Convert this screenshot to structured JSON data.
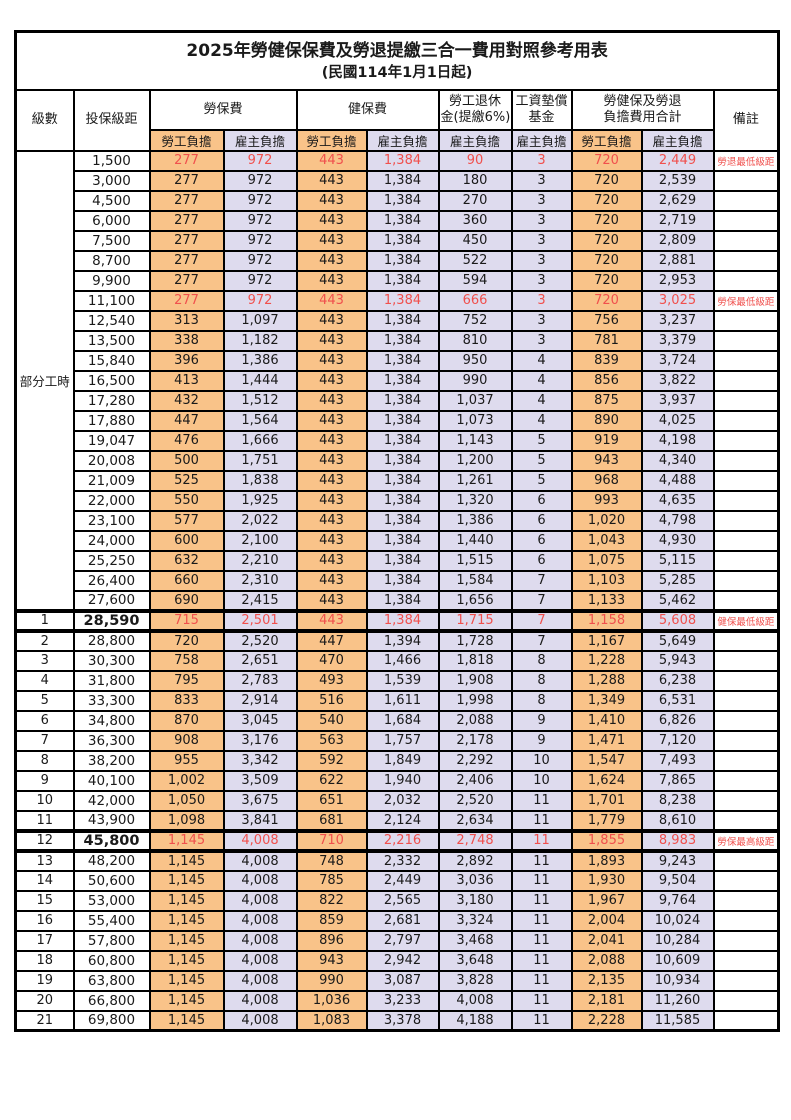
{
  "header": {
    "title": "2025年勞健保保費及勞退提繳三合一費用對照參考用表",
    "subtitle": "(民國114年1月1日起)",
    "col_level": "級數",
    "col_bracket": "投保級距",
    "group_labor": "勞保費",
    "group_health": "健保費",
    "group_pension_line1": "勞工退休",
    "group_pension_line2": "金(提繳6%)",
    "group_wage_line1": "工資墊償",
    "group_wage_line2": "基金",
    "group_total_line1": "勞健保及勞退",
    "group_total_line2": "負擔費用合計",
    "col_note": "備註",
    "sub_employee": "勞工負擔",
    "sub_employer": "雇主負擔"
  },
  "partial_time_label": "部分工時",
  "partial_time_rowspan": 23,
  "colors": {
    "employee_bg": "#f9c389",
    "employer_bg": "#dedbee",
    "highlight_text": "#f0504d",
    "grid": "#000000"
  },
  "rows": [
    {
      "level": "",
      "bracket": "1,500",
      "values": [
        "277",
        "972",
        "443",
        "1,384",
        "90",
        "3",
        "720",
        "2,449"
      ],
      "note": "勞退最低級距",
      "red": true
    },
    {
      "level": "",
      "bracket": "3,000",
      "values": [
        "277",
        "972",
        "443",
        "1,384",
        "180",
        "3",
        "720",
        "2,539"
      ],
      "note": ""
    },
    {
      "level": "",
      "bracket": "4,500",
      "values": [
        "277",
        "972",
        "443",
        "1,384",
        "270",
        "3",
        "720",
        "2,629"
      ],
      "note": ""
    },
    {
      "level": "",
      "bracket": "6,000",
      "values": [
        "277",
        "972",
        "443",
        "1,384",
        "360",
        "3",
        "720",
        "2,719"
      ],
      "note": ""
    },
    {
      "level": "",
      "bracket": "7,500",
      "values": [
        "277",
        "972",
        "443",
        "1,384",
        "450",
        "3",
        "720",
        "2,809"
      ],
      "note": ""
    },
    {
      "level": "",
      "bracket": "8,700",
      "values": [
        "277",
        "972",
        "443",
        "1,384",
        "522",
        "3",
        "720",
        "2,881"
      ],
      "note": ""
    },
    {
      "level": "",
      "bracket": "9,900",
      "values": [
        "277",
        "972",
        "443",
        "1,384",
        "594",
        "3",
        "720",
        "2,953"
      ],
      "note": ""
    },
    {
      "level": "",
      "bracket": "11,100",
      "values": [
        "277",
        "972",
        "443",
        "1,384",
        "666",
        "3",
        "720",
        "3,025"
      ],
      "note": "勞保最低級距",
      "red": true
    },
    {
      "level": "",
      "bracket": "12,540",
      "values": [
        "313",
        "1,097",
        "443",
        "1,384",
        "752",
        "3",
        "756",
        "3,237"
      ],
      "note": ""
    },
    {
      "level": "",
      "bracket": "13,500",
      "values": [
        "338",
        "1,182",
        "443",
        "1,384",
        "810",
        "3",
        "781",
        "3,379"
      ],
      "note": ""
    },
    {
      "level": "",
      "bracket": "15,840",
      "values": [
        "396",
        "1,386",
        "443",
        "1,384",
        "950",
        "4",
        "839",
        "3,724"
      ],
      "note": ""
    },
    {
      "level": "",
      "bracket": "16,500",
      "values": [
        "413",
        "1,444",
        "443",
        "1,384",
        "990",
        "4",
        "856",
        "3,822"
      ],
      "note": ""
    },
    {
      "level": "",
      "bracket": "17,280",
      "values": [
        "432",
        "1,512",
        "443",
        "1,384",
        "1,037",
        "4",
        "875",
        "3,937"
      ],
      "note": ""
    },
    {
      "level": "",
      "bracket": "17,880",
      "values": [
        "447",
        "1,564",
        "443",
        "1,384",
        "1,073",
        "4",
        "890",
        "4,025"
      ],
      "note": ""
    },
    {
      "level": "",
      "bracket": "19,047",
      "values": [
        "476",
        "1,666",
        "443",
        "1,384",
        "1,143",
        "5",
        "919",
        "4,198"
      ],
      "note": ""
    },
    {
      "level": "",
      "bracket": "20,008",
      "values": [
        "500",
        "1,751",
        "443",
        "1,384",
        "1,200",
        "5",
        "943",
        "4,340"
      ],
      "note": ""
    },
    {
      "level": "",
      "bracket": "21,009",
      "values": [
        "525",
        "1,838",
        "443",
        "1,384",
        "1,261",
        "5",
        "968",
        "4,488"
      ],
      "note": ""
    },
    {
      "level": "",
      "bracket": "22,000",
      "values": [
        "550",
        "1,925",
        "443",
        "1,384",
        "1,320",
        "6",
        "993",
        "4,635"
      ],
      "note": ""
    },
    {
      "level": "",
      "bracket": "23,100",
      "values": [
        "577",
        "2,022",
        "443",
        "1,384",
        "1,386",
        "6",
        "1,020",
        "4,798"
      ],
      "note": ""
    },
    {
      "level": "",
      "bracket": "24,000",
      "values": [
        "600",
        "2,100",
        "443",
        "1,384",
        "1,440",
        "6",
        "1,043",
        "4,930"
      ],
      "note": ""
    },
    {
      "level": "",
      "bracket": "25,250",
      "values": [
        "632",
        "2,210",
        "443",
        "1,384",
        "1,515",
        "6",
        "1,075",
        "5,115"
      ],
      "note": ""
    },
    {
      "level": "",
      "bracket": "26,400",
      "values": [
        "660",
        "2,310",
        "443",
        "1,384",
        "1,584",
        "7",
        "1,103",
        "5,285"
      ],
      "note": ""
    },
    {
      "level": "",
      "bracket": "27,600",
      "values": [
        "690",
        "2,415",
        "443",
        "1,384",
        "1,656",
        "7",
        "1,133",
        "5,462"
      ],
      "note": ""
    },
    {
      "level": "1",
      "bracket": "28,590",
      "values": [
        "715",
        "2,501",
        "443",
        "1,384",
        "1,715",
        "7",
        "1,158",
        "5,608"
      ],
      "note": "健保最低級距",
      "red": true,
      "emphasis": true
    },
    {
      "level": "2",
      "bracket": "28,800",
      "values": [
        "720",
        "2,520",
        "447",
        "1,394",
        "1,728",
        "7",
        "1,167",
        "5,649"
      ],
      "note": ""
    },
    {
      "level": "3",
      "bracket": "30,300",
      "values": [
        "758",
        "2,651",
        "470",
        "1,466",
        "1,818",
        "8",
        "1,228",
        "5,943"
      ],
      "note": ""
    },
    {
      "level": "4",
      "bracket": "31,800",
      "values": [
        "795",
        "2,783",
        "493",
        "1,539",
        "1,908",
        "8",
        "1,288",
        "6,238"
      ],
      "note": ""
    },
    {
      "level": "5",
      "bracket": "33,300",
      "values": [
        "833",
        "2,914",
        "516",
        "1,611",
        "1,998",
        "8",
        "1,349",
        "6,531"
      ],
      "note": ""
    },
    {
      "level": "6",
      "bracket": "34,800",
      "values": [
        "870",
        "3,045",
        "540",
        "1,684",
        "2,088",
        "9",
        "1,410",
        "6,826"
      ],
      "note": ""
    },
    {
      "level": "7",
      "bracket": "36,300",
      "values": [
        "908",
        "3,176",
        "563",
        "1,757",
        "2,178",
        "9",
        "1,471",
        "7,120"
      ],
      "note": ""
    },
    {
      "level": "8",
      "bracket": "38,200",
      "values": [
        "955",
        "3,342",
        "592",
        "1,849",
        "2,292",
        "10",
        "1,547",
        "7,493"
      ],
      "note": ""
    },
    {
      "level": "9",
      "bracket": "40,100",
      "values": [
        "1,002",
        "3,509",
        "622",
        "1,940",
        "2,406",
        "10",
        "1,624",
        "7,865"
      ],
      "note": ""
    },
    {
      "level": "10",
      "bracket": "42,000",
      "values": [
        "1,050",
        "3,675",
        "651",
        "2,032",
        "2,520",
        "11",
        "1,701",
        "8,238"
      ],
      "note": ""
    },
    {
      "level": "11",
      "bracket": "43,900",
      "values": [
        "1,098",
        "3,841",
        "681",
        "2,124",
        "2,634",
        "11",
        "1,779",
        "8,610"
      ],
      "note": ""
    },
    {
      "level": "12",
      "bracket": "45,800",
      "values": [
        "1,145",
        "4,008",
        "710",
        "2,216",
        "2,748",
        "11",
        "1,855",
        "8,983"
      ],
      "note": "勞保最高級距",
      "red": true,
      "emphasis": true
    },
    {
      "level": "13",
      "bracket": "48,200",
      "values": [
        "1,145",
        "4,008",
        "748",
        "2,332",
        "2,892",
        "11",
        "1,893",
        "9,243"
      ],
      "note": ""
    },
    {
      "level": "14",
      "bracket": "50,600",
      "values": [
        "1,145",
        "4,008",
        "785",
        "2,449",
        "3,036",
        "11",
        "1,930",
        "9,504"
      ],
      "note": ""
    },
    {
      "level": "15",
      "bracket": "53,000",
      "values": [
        "1,145",
        "4,008",
        "822",
        "2,565",
        "3,180",
        "11",
        "1,967",
        "9,764"
      ],
      "note": ""
    },
    {
      "level": "16",
      "bracket": "55,400",
      "values": [
        "1,145",
        "4,008",
        "859",
        "2,681",
        "3,324",
        "11",
        "2,004",
        "10,024"
      ],
      "note": ""
    },
    {
      "level": "17",
      "bracket": "57,800",
      "values": [
        "1,145",
        "4,008",
        "896",
        "2,797",
        "3,468",
        "11",
        "2,041",
        "10,284"
      ],
      "note": ""
    },
    {
      "level": "18",
      "bracket": "60,800",
      "values": [
        "1,145",
        "4,008",
        "943",
        "2,942",
        "3,648",
        "11",
        "2,088",
        "10,609"
      ],
      "note": ""
    },
    {
      "level": "19",
      "bracket": "63,800",
      "values": [
        "1,145",
        "4,008",
        "990",
        "3,087",
        "3,828",
        "11",
        "2,135",
        "10,934"
      ],
      "note": ""
    },
    {
      "level": "20",
      "bracket": "66,800",
      "values": [
        "1,145",
        "4,008",
        "1,036",
        "3,233",
        "4,008",
        "11",
        "2,181",
        "11,260"
      ],
      "note": ""
    },
    {
      "level": "21",
      "bracket": "69,800",
      "values": [
        "1,145",
        "4,008",
        "1,083",
        "3,378",
        "4,188",
        "11",
        "2,228",
        "11,585"
      ],
      "note": ""
    }
  ]
}
